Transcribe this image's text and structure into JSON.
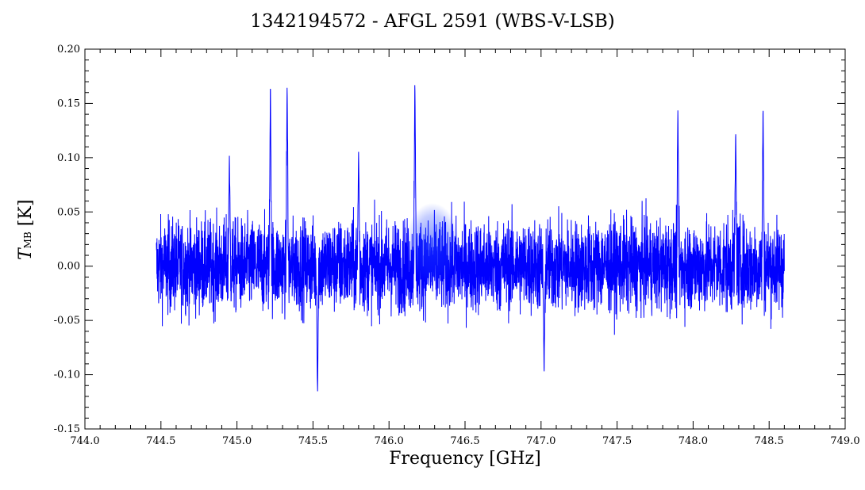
{
  "chart_data": {
    "type": "line",
    "title": "1342194572 - AFGL 2591 (WBS-V-LSB)",
    "xlabel": "Frequency [GHz]",
    "ylabel": {
      "symbol": "T",
      "subscript": "MB",
      "unit": "[K]"
    },
    "xlim": [
      744.0,
      749.0
    ],
    "ylim": [
      -0.15,
      0.2
    ],
    "x_ticks": [
      "744.0",
      "744.5",
      "745.0",
      "745.5",
      "746.0",
      "746.5",
      "747.0",
      "747.5",
      "748.0",
      "748.5",
      "749.0"
    ],
    "y_ticks": [
      "0.20",
      "0.15",
      "0.10",
      "0.05",
      "0.00",
      "-0.05",
      "-0.10",
      "-0.15"
    ],
    "grid": false,
    "legend": "none",
    "series": [
      {
        "color": "#0000ff",
        "x_range": [
          744.47,
          748.6
        ],
        "baseline": 0.0,
        "noise_amplitude": 0.05,
        "features": [
          {
            "x": 744.95,
            "y": 0.102
          },
          {
            "x": 745.22,
            "y": 0.174
          },
          {
            "x": 745.33,
            "y": 0.173
          },
          {
            "x": 745.53,
            "y": -0.119
          },
          {
            "x": 745.8,
            "y": 0.108
          },
          {
            "x": 746.17,
            "y": 0.176
          },
          {
            "x": 747.02,
            "y": -0.102
          },
          {
            "x": 747.9,
            "y": 0.147
          },
          {
            "x": 748.28,
            "y": 0.127
          },
          {
            "x": 748.46,
            "y": 0.15
          }
        ]
      }
    ]
  },
  "watermark": {
    "color": "#1a3cff"
  }
}
